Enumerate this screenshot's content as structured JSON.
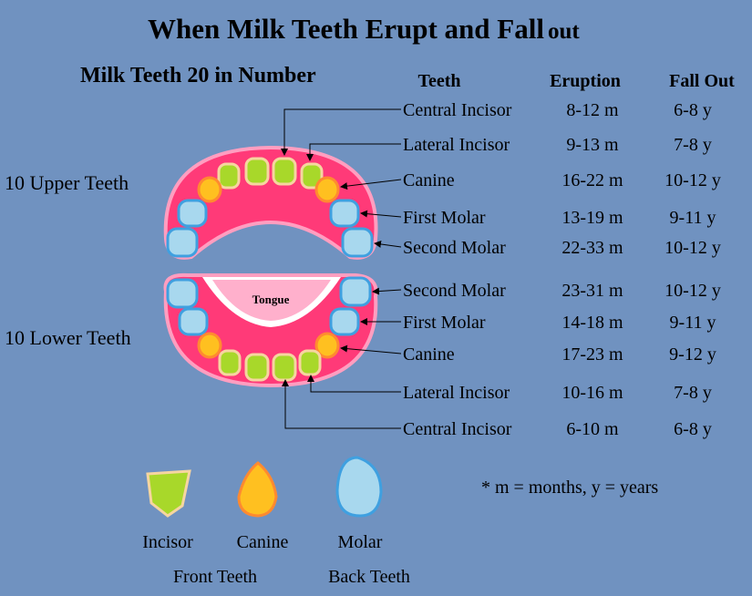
{
  "title": "When Milk Teeth Erupt and Fall",
  "title_end": "out",
  "subtitle": "Milk Teeth  20 in Number",
  "headers": [
    "Teeth",
    "Eruption",
    "Fall Out"
  ],
  "upper": {
    "label": "10 Upper Teeth",
    "rows": [
      [
        "Central Incisor",
        "8-12 m",
        "6-8 y"
      ],
      [
        "Lateral Incisor",
        "9-13 m",
        "7-8 y"
      ],
      [
        "Canine",
        "16-22 m",
        "10-12 y"
      ],
      [
        "First Molar",
        "13-19 m",
        "9-11 y"
      ],
      [
        "Second Molar",
        "22-33 m",
        "10-12 y"
      ]
    ]
  },
  "lower": {
    "label": "10 Lower Teeth",
    "tongue": "Tongue",
    "rows": [
      [
        "Second Molar",
        "23-31 m",
        "10-12 y"
      ],
      [
        "First Molar",
        "14-18 m",
        "9-11 y"
      ],
      [
        "Canine",
        "17-23 m",
        "9-12 y"
      ],
      [
        "Lateral Incisor",
        "10-16 m",
        "7-8 y"
      ],
      [
        "Central Incisor",
        "6-10 m",
        "6-8 y"
      ]
    ]
  },
  "note": "* m = months, y = years",
  "legend": {
    "items": [
      "Incisor",
      "Canine",
      "Molar"
    ],
    "groups": [
      "Front Teeth",
      "Back Teeth"
    ]
  }
}
